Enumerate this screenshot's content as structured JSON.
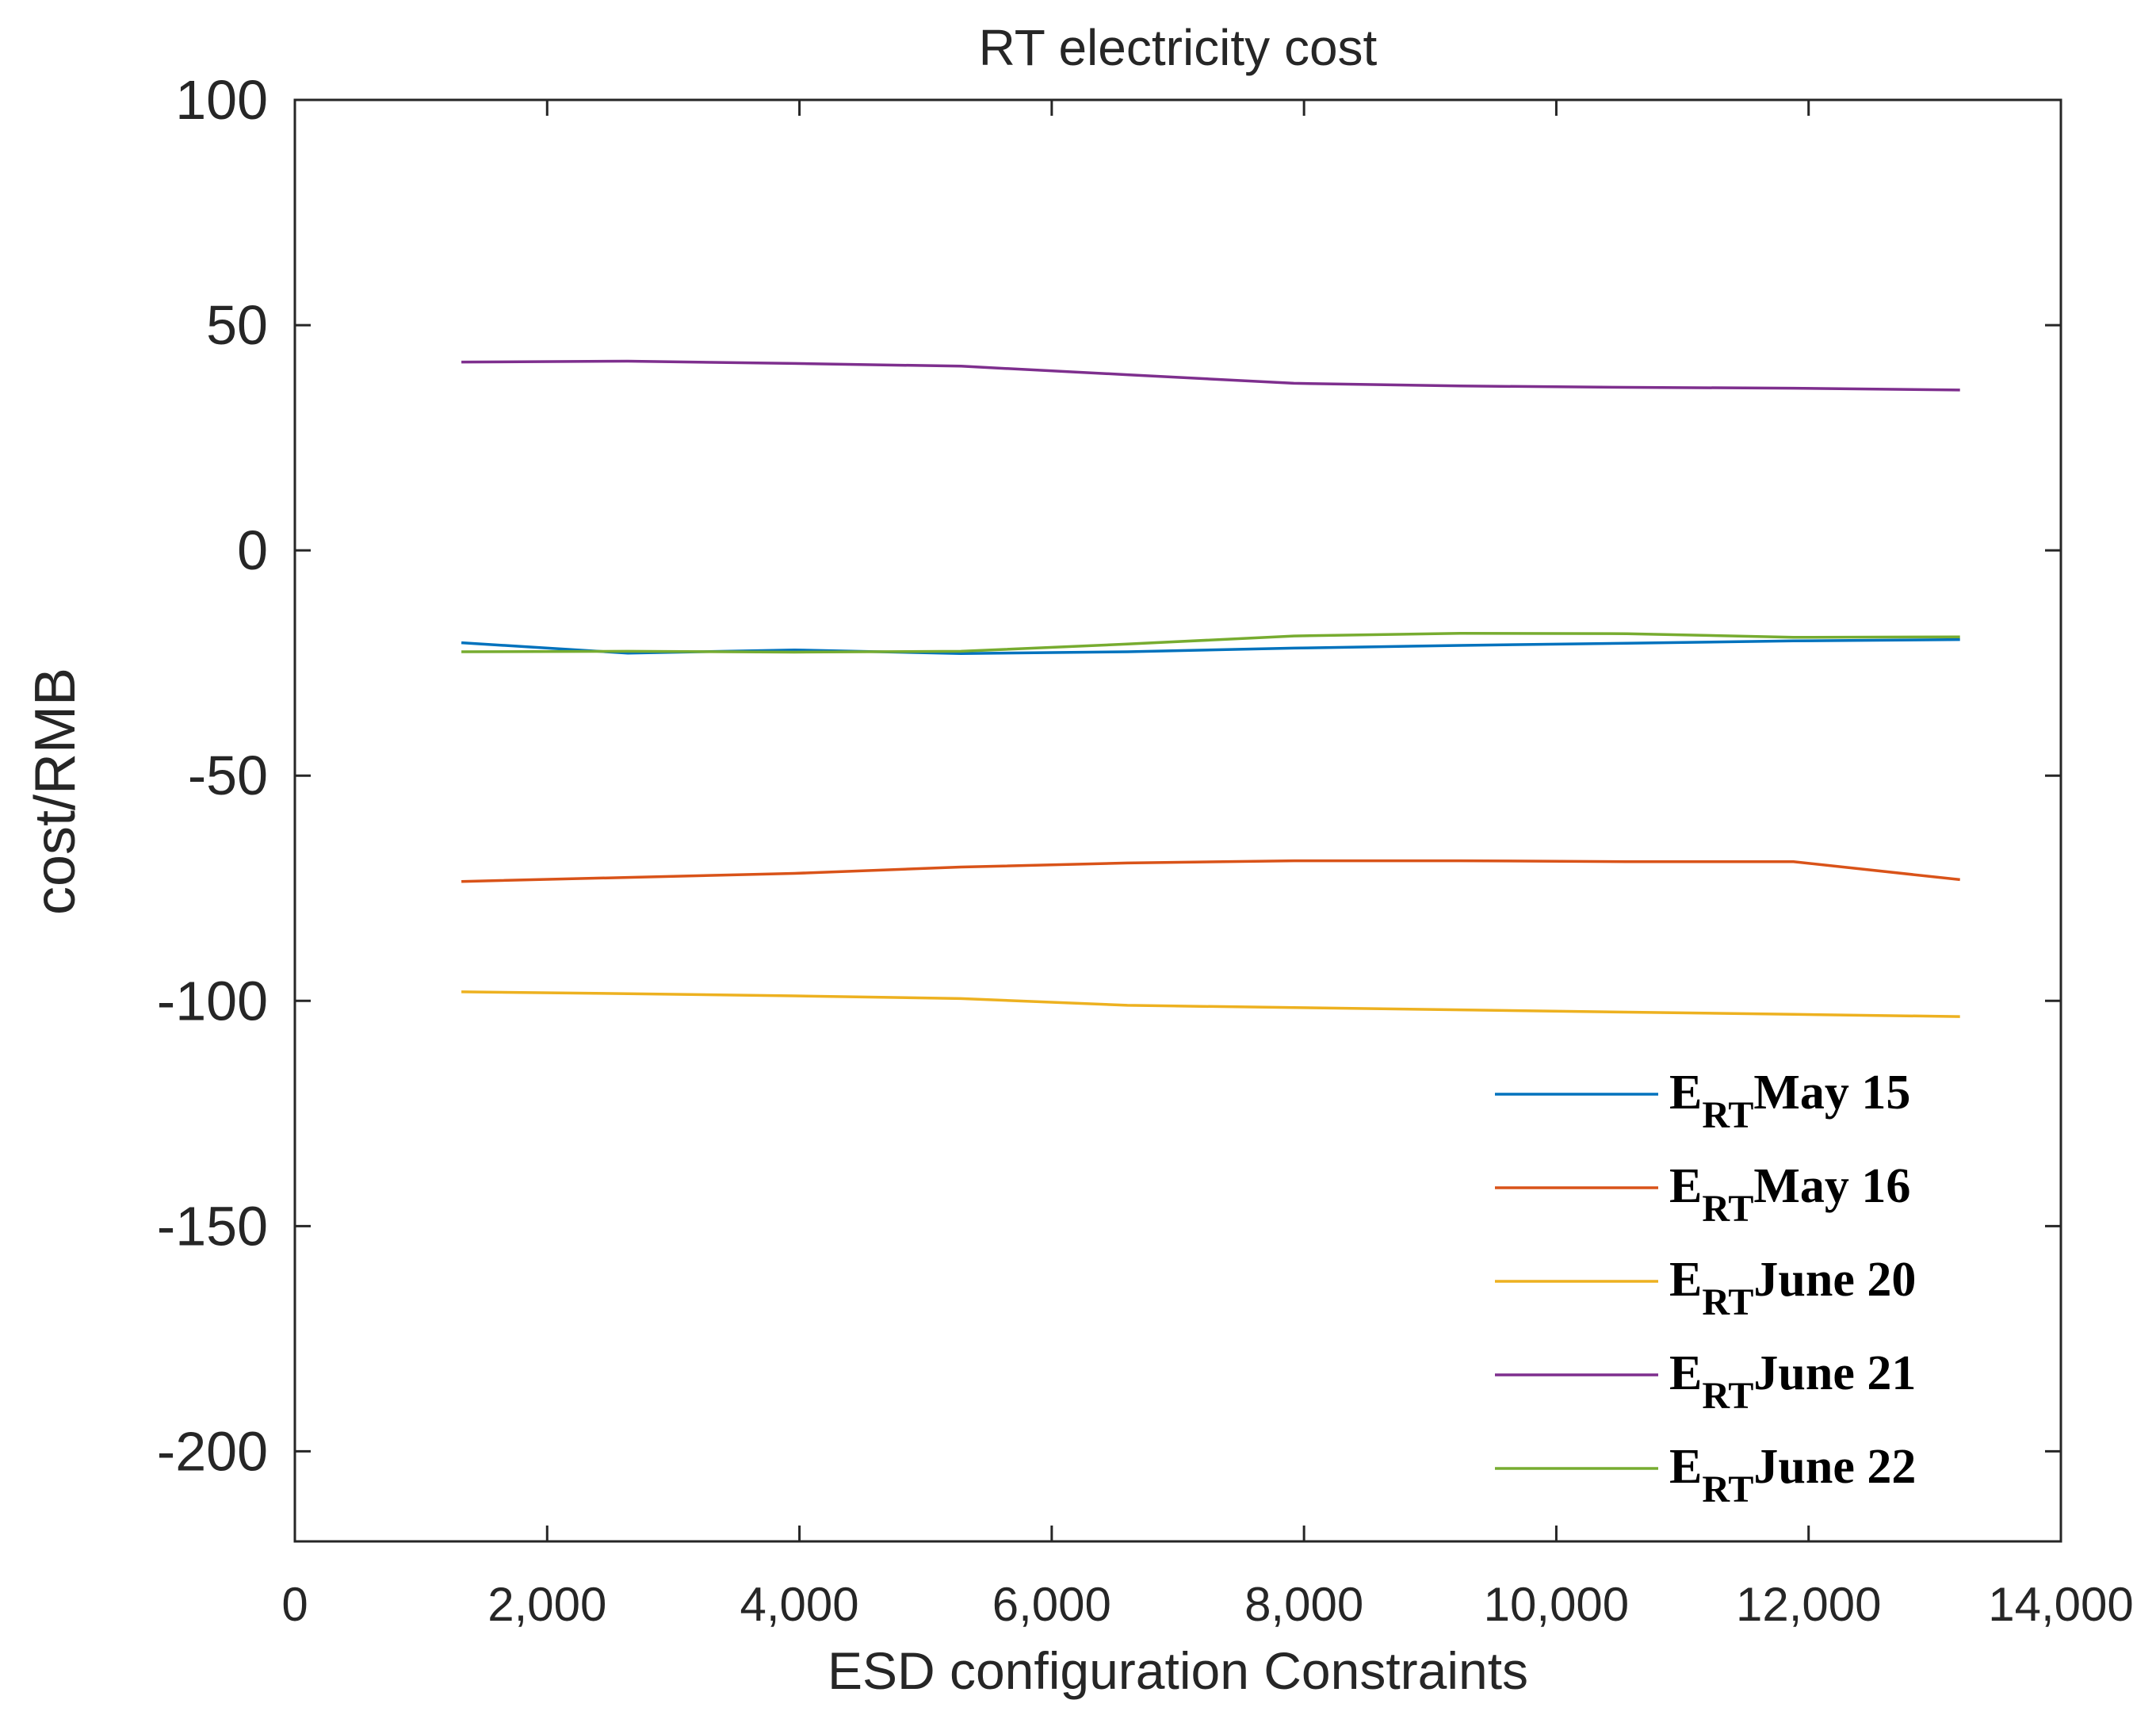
{
  "chart_data": {
    "type": "line",
    "title": "RT electricity cost",
    "xlabel": "ESD configuration Constraints",
    "ylabel": "cost/RMB",
    "xlim": [
      0,
      14000
    ],
    "ylim": [
      -220,
      100
    ],
    "xticks": [
      0,
      2000,
      4000,
      6000,
      8000,
      10000,
      12000,
      14000
    ],
    "xtick_labels": [
      "0",
      "2,000",
      "4,000",
      "6,000",
      "8,000",
      "10,000",
      "12,000",
      "14,000"
    ],
    "yticks": [
      100,
      50,
      0,
      -50,
      -100,
      -150,
      -200
    ],
    "ytick_labels": [
      "100",
      "50",
      "0",
      "-50",
      "-100",
      "-150",
      "-200"
    ],
    "x": [
      1320,
      2640,
      3960,
      5280,
      6600,
      7920,
      9240,
      10560,
      11880,
      13200
    ],
    "series": [
      {
        "name": "May 15",
        "prefix": "E",
        "subscript": "RT",
        "color": "#0072BD",
        "values": [
          -20.5,
          -22.8,
          -22.1,
          -22.9,
          -22.5,
          -21.7,
          -21.1,
          -20.6,
          -20.1,
          -19.8
        ]
      },
      {
        "name": "May 16",
        "prefix": "E",
        "subscript": "RT",
        "color": "#D95319",
        "values": [
          -73.5,
          -72.6,
          -71.7,
          -70.3,
          -69.4,
          -68.9,
          -68.9,
          -69.1,
          -69.1,
          -73.1
        ]
      },
      {
        "name": "June 20",
        "prefix": "E",
        "subscript": "RT",
        "color": "#EDB120",
        "values": [
          -98.0,
          -98.4,
          -98.9,
          -99.5,
          -101.0,
          -101.5,
          -102.0,
          -102.5,
          -103.0,
          -103.5
        ]
      },
      {
        "name": "June 21",
        "prefix": "E",
        "subscript": "RT",
        "color": "#7E2F8E",
        "values": [
          41.8,
          42.0,
          41.5,
          40.9,
          39.0,
          37.1,
          36.5,
          36.2,
          36.0,
          35.6
        ]
      },
      {
        "name": "June 22",
        "prefix": "E",
        "subscript": "RT",
        "color": "#77AC30",
        "values": [
          -22.5,
          -22.4,
          -22.6,
          -22.4,
          -20.8,
          -19.0,
          -18.4,
          -18.5,
          -19.3,
          -19.2
        ]
      }
    ],
    "legend_position": "bottom-right",
    "grid": false
  }
}
